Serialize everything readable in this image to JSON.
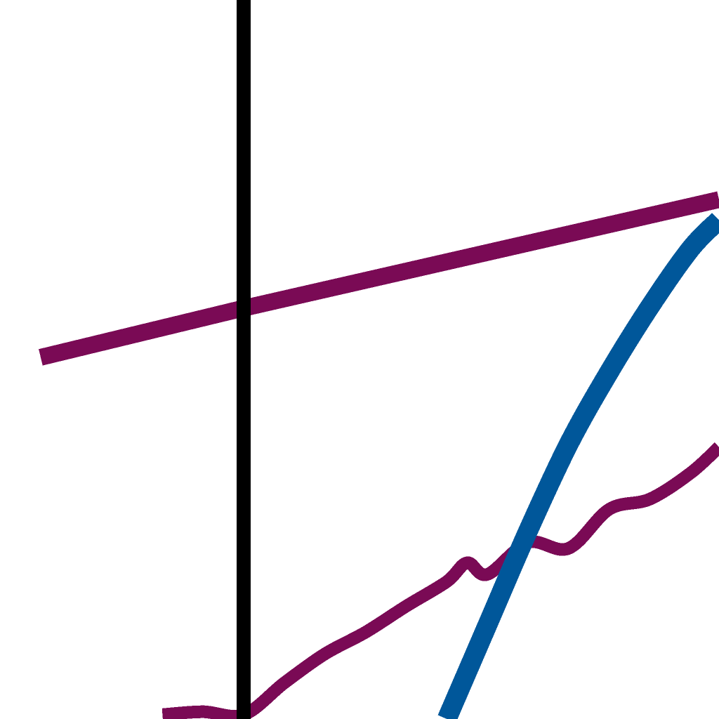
{
  "chart_data": {
    "type": "line",
    "title": "",
    "xlabel": "",
    "ylabel": "",
    "grid": false,
    "legend": "none",
    "reference_line": {
      "orientation": "vertical",
      "x": 0,
      "color": "#000000"
    },
    "series": [
      {
        "style": "straight",
        "color": "#7a0a55",
        "x": [
          -0.5,
          0.0,
          1.17
        ],
        "y": [
          0.0,
          0.34,
          1.09
        ]
      },
      {
        "style": "oscillating",
        "color": "#7a0a55",
        "x": [
          -0.2,
          -0.1,
          0.0,
          0.1,
          0.2,
          0.3,
          0.4,
          0.5,
          0.55,
          0.6,
          0.7,
          0.8,
          0.9,
          1.0,
          1.1,
          1.17
        ],
        "y": [
          -2.47,
          -2.45,
          -2.47,
          -2.25,
          -2.05,
          -1.9,
          -1.72,
          -1.55,
          -1.42,
          -1.5,
          -1.28,
          -1.32,
          -1.05,
          -0.98,
          -0.8,
          -0.62
        ]
      },
      {
        "style": "smooth",
        "color": "#00579a",
        "x": [
          0.5,
          0.6,
          0.7,
          0.8,
          0.9,
          1.0,
          1.1,
          1.17
        ],
        "y": [
          -2.5,
          -1.85,
          -1.2,
          -0.6,
          -0.1,
          0.35,
          0.75,
          0.95
        ]
      }
    ]
  }
}
